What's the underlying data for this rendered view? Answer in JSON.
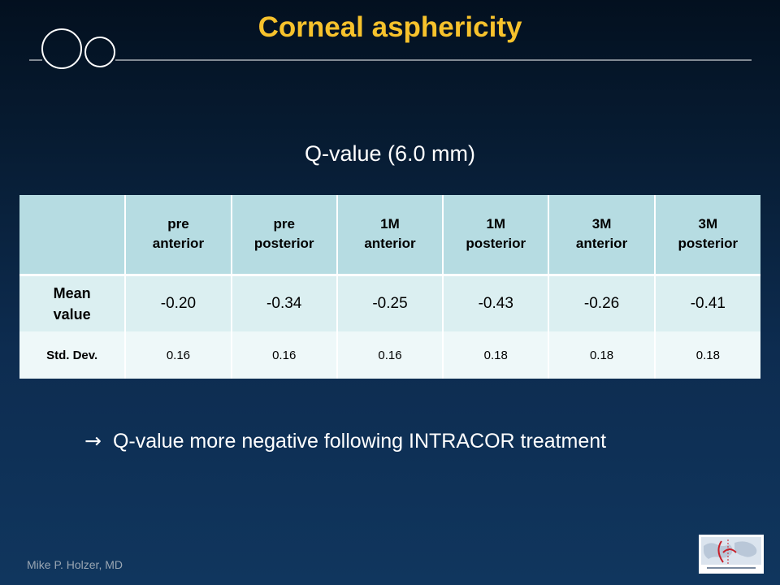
{
  "slide": {
    "title": "Corneal asphericity",
    "subtitle": "Q-value (6.0 mm)",
    "conclusion_arrow": "→",
    "conclusion_text": "Q-value more negative following INTRACOR treatment",
    "author": "Mike P. Holzer, MD"
  },
  "table": {
    "headers": [
      {
        "line1": "pre",
        "line2": "anterior"
      },
      {
        "line1": "pre",
        "line2": "posterior"
      },
      {
        "line1": "1M",
        "line2": "anterior"
      },
      {
        "line1": "1M",
        "line2": "posterior"
      },
      {
        "line1": "3M",
        "line2": "anterior"
      },
      {
        "line1": "3M",
        "line2": "posterior"
      }
    ],
    "rows": [
      {
        "label_line1": "Mean",
        "label_line2": "value",
        "values": [
          "-0.20",
          "-0.34",
          "-0.25",
          "-0.43",
          "-0.26",
          "-0.41"
        ]
      },
      {
        "label": "Std. Dev.",
        "values": [
          "0.16",
          "0.16",
          "0.16",
          "0.18",
          "0.18",
          "0.18"
        ]
      }
    ]
  },
  "colors": {
    "title": "#f7c22c",
    "header_bg": "#b6dce2",
    "row1_bg": "#dbeff1",
    "row2_bg": "#eef8f9"
  },
  "icons": {
    "decoration": "double-circle-line-icon",
    "logo": "research-centre-logo-icon"
  }
}
